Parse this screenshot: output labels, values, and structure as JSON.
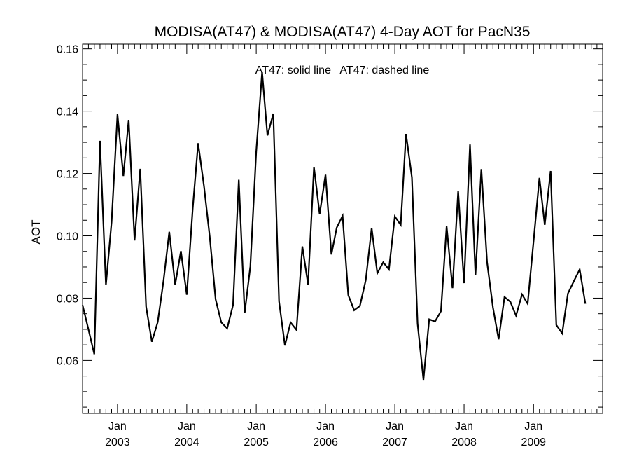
{
  "chart_data": {
    "type": "line",
    "title": "MODISA(AT47) & MODISA(AT47) 4-Day AOT for PacN35",
    "annotation": "AT47: solid line   AT47: dashed line",
    "ylabel": "AOT",
    "xlabel": "",
    "ylim": [
      0.043,
      0.1615
    ],
    "xlim": [
      "2002-07-01",
      "2009-12-31"
    ],
    "y_ticks": [
      "0.06",
      "0.08",
      "0.10",
      "0.12",
      "0.14",
      "0.16"
    ],
    "x_ticks": [
      {
        "month": "Jan",
        "year": "2003"
      },
      {
        "month": "Jan",
        "year": "2004"
      },
      {
        "month": "Jan",
        "year": "2005"
      },
      {
        "month": "Jan",
        "year": "2006"
      },
      {
        "month": "Jan",
        "year": "2007"
      },
      {
        "month": "Jan",
        "year": "2008"
      },
      {
        "month": "Jan",
        "year": "2009"
      }
    ],
    "grid": false,
    "series": [
      {
        "style": "solid",
        "color": "#000000",
        "points": [
          [
            "2002-07-01",
            0.0778
          ],
          [
            "2002-08-01",
            0.07
          ],
          [
            "2002-09-01",
            0.062
          ],
          [
            "2002-10-01",
            0.1305
          ],
          [
            "2002-11-01",
            0.0842
          ],
          [
            "2002-12-01",
            0.1045
          ],
          [
            "2003-01-01",
            0.139
          ],
          [
            "2003-02-01",
            0.1192
          ],
          [
            "2003-03-01",
            0.1372
          ],
          [
            "2003-04-01",
            0.0985
          ],
          [
            "2003-05-01",
            0.1215
          ],
          [
            "2003-06-01",
            0.0773
          ],
          [
            "2003-07-01",
            0.066
          ],
          [
            "2003-08-01",
            0.0723
          ],
          [
            "2003-09-01",
            0.0858
          ],
          [
            "2003-10-01",
            0.1013
          ],
          [
            "2003-11-01",
            0.0843
          ],
          [
            "2003-12-01",
            0.0951
          ],
          [
            "2004-01-01",
            0.0811
          ],
          [
            "2004-02-01",
            0.1085
          ],
          [
            "2004-03-01",
            0.1297
          ],
          [
            "2004-04-01",
            0.1159
          ],
          [
            "2004-05-01",
            0.0997
          ],
          [
            "2004-06-01",
            0.0796
          ],
          [
            "2004-07-01",
            0.0722
          ],
          [
            "2004-08-01",
            0.0703
          ],
          [
            "2004-09-01",
            0.0778
          ],
          [
            "2004-10-01",
            0.118
          ],
          [
            "2004-11-01",
            0.0752
          ],
          [
            "2004-12-01",
            0.0902
          ],
          [
            "2005-01-01",
            0.127
          ],
          [
            "2005-02-01",
            0.1525
          ],
          [
            "2005-03-01",
            0.1322
          ],
          [
            "2005-04-01",
            0.1392
          ],
          [
            "2005-05-01",
            0.079
          ],
          [
            "2005-06-01",
            0.0648
          ],
          [
            "2005-07-01",
            0.0722
          ],
          [
            "2005-08-01",
            0.0698
          ],
          [
            "2005-09-01",
            0.0966
          ],
          [
            "2005-10-01",
            0.0844
          ],
          [
            "2005-11-01",
            0.122
          ],
          [
            "2005-12-01",
            0.107
          ],
          [
            "2006-01-01",
            0.1196
          ],
          [
            "2006-02-01",
            0.094
          ],
          [
            "2006-03-01",
            0.1026
          ],
          [
            "2006-04-01",
            0.1064
          ],
          [
            "2006-05-01",
            0.081
          ],
          [
            "2006-06-01",
            0.0761
          ],
          [
            "2006-07-01",
            0.0775
          ],
          [
            "2006-08-01",
            0.0858
          ],
          [
            "2006-09-01",
            0.1025
          ],
          [
            "2006-10-01",
            0.088
          ],
          [
            "2006-11-01",
            0.0915
          ],
          [
            "2006-12-01",
            0.0892
          ],
          [
            "2007-01-01",
            0.1062
          ],
          [
            "2007-02-01",
            0.1035
          ],
          [
            "2007-03-01",
            0.1327
          ],
          [
            "2007-04-01",
            0.1187
          ],
          [
            "2007-05-01",
            0.0718
          ],
          [
            "2007-06-01",
            0.0538
          ],
          [
            "2007-07-01",
            0.0732
          ],
          [
            "2007-08-01",
            0.0725
          ],
          [
            "2007-09-01",
            0.0758
          ],
          [
            "2007-10-01",
            0.1031
          ],
          [
            "2007-11-01",
            0.0832
          ],
          [
            "2007-12-01",
            0.1143
          ],
          [
            "2008-01-01",
            0.0848
          ],
          [
            "2008-02-01",
            0.1293
          ],
          [
            "2008-03-01",
            0.0874
          ],
          [
            "2008-04-01",
            0.1214
          ],
          [
            "2008-05-01",
            0.0915
          ],
          [
            "2008-06-01",
            0.077
          ],
          [
            "2008-07-01",
            0.0668
          ],
          [
            "2008-08-01",
            0.0804
          ],
          [
            "2008-09-01",
            0.0788
          ],
          [
            "2008-10-01",
            0.0744
          ],
          [
            "2008-11-01",
            0.0812
          ],
          [
            "2008-12-01",
            0.0782
          ],
          [
            "2009-01-01",
            0.0982
          ],
          [
            "2009-02-01",
            0.1186
          ],
          [
            "2009-03-01",
            0.1035
          ],
          [
            "2009-04-01",
            0.1208
          ],
          [
            "2009-05-01",
            0.0714
          ],
          [
            "2009-06-01",
            0.0687
          ],
          [
            "2009-07-01",
            0.0815
          ],
          [
            "2009-08-01",
            0.0854
          ],
          [
            "2009-09-01",
            0.0892
          ],
          [
            "2009-10-01",
            0.0782
          ]
        ]
      }
    ]
  }
}
